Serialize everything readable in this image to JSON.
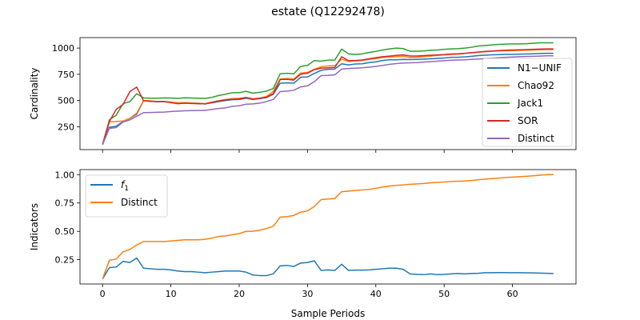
{
  "figure": {
    "title": "estate (Q12292478)",
    "xlabel": "Sample Periods"
  },
  "chart_data": [
    {
      "type": "line",
      "ylabel": "Cardinality",
      "xlim": [
        -3.3,
        69.3
      ],
      "ylim": [
        32,
        1100
      ],
      "xticks": [
        0,
        10,
        20,
        30,
        40,
        50,
        60
      ],
      "yticks": [
        250,
        500,
        750,
        1000
      ],
      "ytick_labels": [
        "250",
        "500",
        "750",
        "1000"
      ],
      "show_xtick_labels": false,
      "grid": false,
      "legend_position": "center-right",
      "x": [
        0,
        1,
        2,
        3,
        4,
        5,
        6,
        7,
        8,
        9,
        10,
        11,
        12,
        13,
        14,
        15,
        16,
        17,
        18,
        19,
        20,
        21,
        22,
        23,
        24,
        25,
        26,
        27,
        28,
        29,
        30,
        31,
        32,
        33,
        34,
        35,
        36,
        37,
        38,
        39,
        40,
        41,
        42,
        43,
        44,
        45,
        46,
        47,
        48,
        49,
        50,
        51,
        52,
        53,
        54,
        55,
        56,
        57,
        58,
        59,
        60,
        61,
        62,
        63,
        64,
        65,
        66
      ],
      "series": [
        {
          "name": "N1−UNIF",
          "color": "#1f77b4",
          "values": [
            80,
            245,
            255,
            300,
            330,
            370,
            498,
            495,
            488,
            490,
            483,
            475,
            478,
            475,
            472,
            468,
            478,
            490,
            500,
            508,
            510,
            522,
            510,
            518,
            528,
            560,
            665,
            668,
            665,
            722,
            725,
            758,
            788,
            798,
            800,
            850,
            840,
            848,
            850,
            862,
            868,
            882,
            888,
            888,
            892,
            890,
            892,
            895,
            898,
            902,
            905,
            912,
            912,
            916,
            922,
            928,
            932,
            936,
            938,
            940,
            940,
            942,
            944,
            946,
            948,
            950,
            950
          ]
        },
        {
          "name": "Chao92",
          "color": "#ff7f0e",
          "values": [
            80,
            295,
            300,
            305,
            330,
            380,
            500,
            498,
            490,
            492,
            485,
            478,
            480,
            477,
            475,
            470,
            485,
            498,
            510,
            518,
            520,
            530,
            516,
            524,
            538,
            588,
            705,
            710,
            705,
            762,
            768,
            798,
            822,
            830,
            832,
            895,
            872,
            878,
            882,
            892,
            900,
            910,
            915,
            918,
            922,
            910,
            912,
            918,
            924,
            930,
            935,
            940,
            942,
            948,
            955,
            962,
            966,
            970,
            972,
            975,
            976,
            978,
            980,
            982,
            984,
            986,
            986
          ]
        },
        {
          "name": "Jack1",
          "color": "#2ca02c",
          "values": [
            80,
            315,
            360,
            470,
            490,
            565,
            525,
            522,
            522,
            525,
            524,
            520,
            526,
            524,
            522,
            520,
            530,
            548,
            560,
            575,
            575,
            588,
            570,
            578,
            590,
            615,
            755,
            760,
            755,
            825,
            835,
            882,
            875,
            885,
            886,
            990,
            945,
            940,
            945,
            958,
            968,
            982,
            992,
            1000,
            995,
            970,
            970,
            972,
            980,
            982,
            988,
            992,
            994,
            1000,
            1008,
            1020,
            1025,
            1030,
            1035,
            1038,
            1040,
            1040,
            1042,
            1046,
            1050,
            1050,
            1050
          ]
        },
        {
          "name": "SOR",
          "color": "#d62728",
          "values": [
            80,
            300,
            415,
            462,
            585,
            628,
            498,
            492,
            490,
            490,
            480,
            470,
            474,
            472,
            470,
            468,
            482,
            496,
            506,
            512,
            516,
            528,
            514,
            520,
            532,
            566,
            700,
            702,
            695,
            752,
            760,
            795,
            808,
            812,
            815,
            918,
            880,
            882,
            886,
            898,
            908,
            918,
            924,
            930,
            935,
            925,
            925,
            928,
            932,
            935,
            938,
            944,
            946,
            950,
            956,
            962,
            968,
            972,
            976,
            980,
            982,
            984,
            986,
            988,
            990,
            992,
            992
          ]
        },
        {
          "name": "Distinct",
          "color": "#9467bd",
          "values": [
            80,
            235,
            242,
            295,
            315,
            350,
            385,
            386,
            388,
            390,
            395,
            398,
            402,
            404,
            405,
            406,
            415,
            424,
            430,
            445,
            450,
            465,
            468,
            475,
            490,
            510,
            585,
            590,
            598,
            630,
            640,
            680,
            738,
            740,
            745,
            800,
            805,
            808,
            812,
            818,
            825,
            835,
            845,
            852,
            858,
            860,
            862,
            866,
            870,
            875,
            880,
            884,
            886,
            888,
            892,
            896,
            900,
            904,
            908,
            912,
            915,
            918,
            920,
            922,
            924,
            926,
            926
          ]
        }
      ]
    },
    {
      "type": "line",
      "ylabel": "Indicators",
      "xlim": [
        -3.3,
        69.3
      ],
      "ylim": [
        0.0355,
        1.0445
      ],
      "xticks": [
        0,
        10,
        20,
        30,
        40,
        50,
        60
      ],
      "xtick_labels": [
        "0",
        "10",
        "20",
        "30",
        "40",
        "50",
        "60"
      ],
      "yticks": [
        0.25,
        0.5,
        0.75,
        1.0
      ],
      "ytick_labels": [
        "0.25",
        "0.50",
        "0.75",
        "1.00"
      ],
      "grid": false,
      "legend_position": "upper-left",
      "x": [
        0,
        1,
        2,
        3,
        4,
        5,
        6,
        7,
        8,
        9,
        10,
        11,
        12,
        13,
        14,
        15,
        16,
        17,
        18,
        19,
        20,
        21,
        22,
        23,
        24,
        25,
        26,
        27,
        28,
        29,
        30,
        31,
        32,
        33,
        34,
        35,
        36,
        37,
        38,
        39,
        40,
        41,
        42,
        43,
        44,
        45,
        46,
        47,
        48,
        49,
        50,
        51,
        52,
        53,
        54,
        55,
        56,
        57,
        58,
        59,
        60,
        61,
        62,
        63,
        64,
        65,
        66
      ],
      "series": [
        {
          "name": "f",
          "name_subscript": "1",
          "color": "#1f77b4",
          "values": [
            0.08,
            0.18,
            0.185,
            0.235,
            0.225,
            0.265,
            0.175,
            0.17,
            0.165,
            0.165,
            0.16,
            0.15,
            0.145,
            0.145,
            0.14,
            0.135,
            0.14,
            0.145,
            0.15,
            0.15,
            0.15,
            0.14,
            0.115,
            0.11,
            0.11,
            0.125,
            0.195,
            0.2,
            0.19,
            0.22,
            0.225,
            0.24,
            0.155,
            0.16,
            0.155,
            0.21,
            0.155,
            0.158,
            0.158,
            0.16,
            0.165,
            0.17,
            0.175,
            0.175,
            0.165,
            0.125,
            0.12,
            0.118,
            0.125,
            0.118,
            0.12,
            0.125,
            0.128,
            0.125,
            0.128,
            0.13,
            0.135,
            0.135,
            0.136,
            0.136,
            0.135,
            0.135,
            0.134,
            0.133,
            0.132,
            0.13,
            0.128
          ]
        },
        {
          "name": "Distinct",
          "color": "#ff7f0e",
          "values": [
            0.08,
            0.245,
            0.255,
            0.32,
            0.34,
            0.38,
            0.41,
            0.41,
            0.41,
            0.41,
            0.415,
            0.42,
            0.425,
            0.425,
            0.425,
            0.43,
            0.44,
            0.455,
            0.46,
            0.47,
            0.48,
            0.5,
            0.5,
            0.51,
            0.525,
            0.545,
            0.625,
            0.63,
            0.64,
            0.67,
            0.68,
            0.72,
            0.78,
            0.785,
            0.79,
            0.85,
            0.855,
            0.86,
            0.865,
            0.87,
            0.88,
            0.89,
            0.9,
            0.905,
            0.91,
            0.915,
            0.918,
            0.922,
            0.928,
            0.932,
            0.935,
            0.94,
            0.942,
            0.944,
            0.948,
            0.955,
            0.96,
            0.965,
            0.97,
            0.975,
            0.978,
            0.982,
            0.985,
            0.99,
            0.995,
            1.0,
            1.0
          ]
        }
      ]
    }
  ]
}
